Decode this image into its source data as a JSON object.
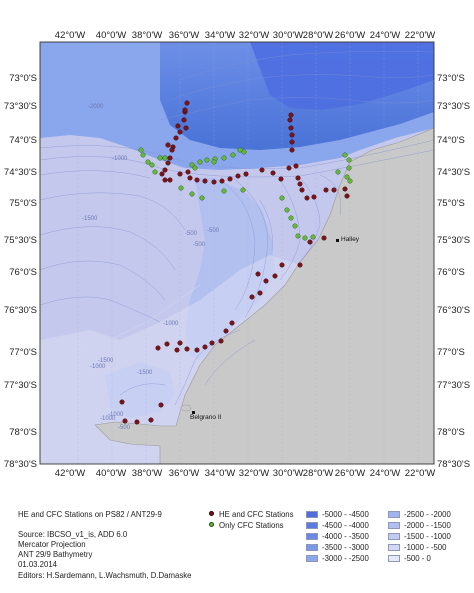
{
  "map": {
    "lon_labels": [
      "42°0'W",
      "40°0'W",
      "38°0'W",
      "36°0'W",
      "34°0'W",
      "32°0'W",
      "30°0'W",
      "28°0'W",
      "26°0'W",
      "24°0'W",
      "22°0'W"
    ],
    "lat_labels": [
      "73°0'S",
      "73°30'S",
      "74°0'S",
      "74°30'S",
      "75°0'S",
      "75°30'S",
      "76°0'S",
      "76°30'S",
      "77°0'S",
      "77°30'S",
      "78°0'S",
      "78°30'S"
    ],
    "place_labels": {
      "halley": "Halley",
      "belgrano": "Belgrano II"
    },
    "contour_labels": [
      "-2000",
      "-1000",
      "-1500",
      "-1000",
      "-1500",
      "-1000",
      "-500",
      "-500",
      "-1500",
      "-1000",
      "-500",
      "-1000",
      "-500"
    ],
    "colors": {
      "he_station": "#7a1418",
      "cfc_station": "#63b83a",
      "land": "#c9c9c9",
      "deep_ocean": "#4a73d6",
      "shelf": "#c4c8ec"
    }
  },
  "info": {
    "title": "HE and CFC Stations on PS82 / ANT29-9",
    "source": "Source: IBCSO_v1_is, ADD 6.0",
    "projection": "Mercator Projection",
    "bathymetry": "ANT 29/9 Bathymetry",
    "date": "01.03.2014",
    "editors": "Editors: H.Sardemann, L.Wachsmuth, D.Damaske"
  },
  "legend": {
    "stations": [
      {
        "label": "HE and CFC Stations",
        "color": "#7a1418"
      },
      {
        "label": "Only CFC Stations",
        "color": "#63b83a"
      }
    ],
    "depth_ranges": [
      {
        "label": "-5000 - -4500",
        "color": "#4e6ee0"
      },
      {
        "label": "-4500 - -4000",
        "color": "#5a7ae3"
      },
      {
        "label": "-4000 - -3500",
        "color": "#6889e6"
      },
      {
        "label": "-3500 - -3000",
        "color": "#7898e9"
      },
      {
        "label": "-3000 - -2500",
        "color": "#8aa6ec"
      },
      {
        "label": "-2500 - -2000",
        "color": "#9fb3ee"
      },
      {
        "label": "-2000 - -1500",
        "color": "#b2c0f0"
      },
      {
        "label": "-1500 - -1000",
        "color": "#c2cbf1"
      },
      {
        "label": "-1000 - -500",
        "color": "#d3d9f4"
      },
      {
        "label": "-500 - 0",
        "color": "#e6e9f7"
      }
    ]
  }
}
